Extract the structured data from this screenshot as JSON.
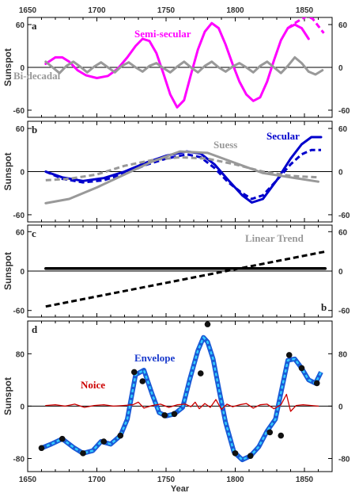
{
  "chart_data": [
    {
      "type": "line",
      "panel_label": "a",
      "ylabel": "Sunspot",
      "xlim": [
        1650,
        1870
      ],
      "ylim": [
        -70,
        70
      ],
      "yticks": [
        -60,
        0,
        60
      ],
      "xticks_top": [
        "1650",
        "1700",
        "1750",
        "1800",
        "1850"
      ],
      "series": [
        {
          "name": "Semi-secular",
          "color": "#ff00ff",
          "style": "solid",
          "x": [
            1663,
            1670,
            1675,
            1680,
            1686,
            1692,
            1700,
            1708,
            1715,
            1722,
            1728,
            1733,
            1738,
            1743,
            1748,
            1753,
            1758,
            1763,
            1768,
            1773,
            1778,
            1783,
            1788,
            1793,
            1798,
            1803,
            1808,
            1813,
            1818,
            1823,
            1828,
            1833,
            1838,
            1843,
            1848,
            1853
          ],
          "y": [
            5,
            14,
            14,
            8,
            -4,
            -11,
            -15,
            -12,
            -2,
            14,
            30,
            40,
            37,
            20,
            -8,
            -38,
            -56,
            -46,
            -10,
            25,
            50,
            62,
            55,
            32,
            5,
            -20,
            -38,
            -47,
            -42,
            -20,
            10,
            38,
            55,
            60,
            55,
            40
          ]
        },
        {
          "name": "",
          "color": "#ff00ff",
          "style": "dashed",
          "x": [
            1838,
            1843,
            1848,
            1852,
            1856,
            1860,
            1864
          ],
          "y": [
            55,
            62,
            68,
            72,
            68,
            58,
            48
          ]
        },
        {
          "name": "Bi-decadal",
          "color": "#999999",
          "style": "solid",
          "x": [
            1663,
            1668,
            1673,
            1678,
            1683,
            1688,
            1693,
            1698,
            1703,
            1708,
            1713,
            1718,
            1723,
            1728,
            1733,
            1738,
            1743,
            1748,
            1753,
            1758,
            1763,
            1768,
            1773,
            1778,
            1783,
            1788,
            1793,
            1798,
            1803,
            1808,
            1813,
            1818,
            1823,
            1828,
            1833,
            1838,
            1843,
            1848,
            1853,
            1858,
            1863
          ],
          "y": [
            8,
            0,
            -8,
            2,
            8,
            1,
            -7,
            1,
            7,
            0,
            -7,
            2,
            7,
            0,
            -6,
            2,
            6,
            -1,
            -7,
            1,
            8,
            0,
            -7,
            2,
            8,
            0,
            -6,
            1,
            6,
            0,
            -7,
            2,
            8,
            0,
            -8,
            2,
            14,
            6,
            -6,
            -10,
            -4
          ]
        }
      ],
      "annotations": [
        "Semi-secular",
        "Bi-decadal"
      ]
    },
    {
      "type": "line",
      "panel_label": "b",
      "ylabel": "Sunspot",
      "xlim": [
        1650,
        1870
      ],
      "ylim": [
        -70,
        70
      ],
      "yticks": [
        -60,
        0,
        60
      ],
      "series": [
        {
          "name": "Secular",
          "color": "#0000cc",
          "style": "solid",
          "x": [
            1663,
            1675,
            1690,
            1705,
            1720,
            1735,
            1750,
            1765,
            1775,
            1785,
            1795,
            1805,
            1812,
            1820,
            1830,
            1840,
            1848,
            1855,
            1862
          ],
          "y": [
            0,
            -8,
            -13,
            -9,
            0,
            12,
            22,
            28,
            25,
            10,
            -12,
            -33,
            -43,
            -38,
            -12,
            18,
            38,
            48,
            48
          ]
        },
        {
          "name": "",
          "color": "#0000cc",
          "style": "dashed",
          "x": [
            1663,
            1675,
            1690,
            1705,
            1720,
            1735,
            1750,
            1765,
            1775,
            1785,
            1795,
            1805,
            1812,
            1820,
            1830,
            1840,
            1848,
            1855,
            1862
          ],
          "y": [
            0,
            -10,
            -15,
            -12,
            -3,
            9,
            18,
            24,
            20,
            5,
            -15,
            -30,
            -38,
            -33,
            -12,
            10,
            24,
            30,
            30
          ]
        },
        {
          "name": "Suess",
          "color": "#999999",
          "style": "solid",
          "x": [
            1663,
            1680,
            1700,
            1720,
            1740,
            1760,
            1780,
            1800,
            1820,
            1840,
            1860
          ],
          "y": [
            -44,
            -38,
            -22,
            -4,
            14,
            28,
            26,
            12,
            -2,
            -8,
            -14
          ]
        },
        {
          "name": "",
          "color": "#999999",
          "style": "dashed",
          "x": [
            1663,
            1680,
            1700,
            1720,
            1740,
            1760,
            1780,
            1800,
            1820,
            1840,
            1860
          ],
          "y": [
            -12,
            -10,
            -4,
            8,
            16,
            20,
            18,
            10,
            0,
            -6,
            -8
          ]
        }
      ],
      "annotations": [
        "Suess",
        "Secular"
      ]
    },
    {
      "type": "line",
      "panel_label": "c",
      "panel_label_2": "b",
      "ylabel": "Sunspot",
      "xlim": [
        1650,
        1870
      ],
      "ylim": [
        -70,
        70
      ],
      "yticks": [
        -60,
        0,
        60
      ],
      "series": [
        {
          "name": "Linear Trend",
          "color": "#000000",
          "style": "dashed",
          "x": [
            1663,
            1866
          ],
          "y": [
            -54,
            30
          ]
        },
        {
          "name": "",
          "color": "#000000",
          "style": "solid",
          "x": [
            1663,
            1865
          ],
          "y": [
            4,
            4
          ]
        }
      ],
      "annotations": [
        "Linear Trend"
      ]
    },
    {
      "type": "line",
      "panel_label": "d",
      "ylabel": "Sunspot",
      "xlabel": "Year",
      "xlim": [
        1650,
        1870
      ],
      "ylim": [
        -100,
        130
      ],
      "yticks": [
        -80,
        0,
        80
      ],
      "xticks_bottom": [
        "1650",
        "1700",
        "1750",
        "1800",
        "1850"
      ],
      "series": [
        {
          "name": "Envelope",
          "color": "#1a5ad6",
          "style": "solid",
          "x": [
            1660,
            1667,
            1675,
            1683,
            1690,
            1697,
            1703,
            1710,
            1717,
            1722,
            1728,
            1734,
            1740,
            1745,
            1750,
            1756,
            1762,
            1767,
            1773,
            1777,
            1780,
            1784,
            1788,
            1793,
            1799,
            1805,
            1811,
            1817,
            1823,
            1829,
            1834,
            1838,
            1843,
            1848,
            1853,
            1858,
            1862
          ],
          "y": [
            -64,
            -58,
            -50,
            -63,
            -72,
            -68,
            -54,
            -58,
            -45,
            -20,
            48,
            55,
            18,
            -10,
            -15,
            -12,
            -2,
            40,
            85,
            105,
            98,
            72,
            28,
            -25,
            -70,
            -82,
            -76,
            -62,
            -38,
            -20,
            30,
            70,
            72,
            58,
            40,
            35,
            52
          ]
        },
        {
          "name": "Noice",
          "color": "#cc0000",
          "style": "solid",
          "x": [
            1663,
            1670,
            1677,
            1684,
            1691,
            1698,
            1705,
            1712,
            1719,
            1726,
            1730,
            1734,
            1740,
            1746,
            1752,
            1758,
            1764,
            1768,
            1771,
            1774,
            1778,
            1782,
            1786,
            1790,
            1794,
            1798,
            1803,
            1808,
            1813,
            1818,
            1823,
            1828,
            1833,
            1837,
            1840,
            1844,
            1849,
            1855,
            1860
          ],
          "y": [
            1,
            2,
            0,
            3,
            -2,
            1,
            2,
            0,
            1,
            2,
            6,
            -3,
            1,
            3,
            -2,
            2,
            3,
            -1,
            6,
            -4,
            4,
            -2,
            10,
            -5,
            3,
            -1,
            2,
            4,
            -3,
            2,
            3,
            -4,
            2,
            18,
            -8,
            1,
            2,
            1,
            0
          ]
        }
      ],
      "markers": {
        "color": "#111111",
        "x": [
          1660,
          1675,
          1690,
          1705,
          1717,
          1727,
          1733,
          1749,
          1756,
          1775,
          1780,
          1800,
          1811,
          1825,
          1833,
          1839,
          1848,
          1859
        ],
        "y": [
          -64,
          -50,
          -72,
          -54,
          -45,
          52,
          38,
          -14,
          -12,
          50,
          125,
          -72,
          -76,
          -40,
          -45,
          78,
          58,
          35
        ]
      },
      "annotations": [
        "Envelope",
        "Noice"
      ]
    }
  ]
}
